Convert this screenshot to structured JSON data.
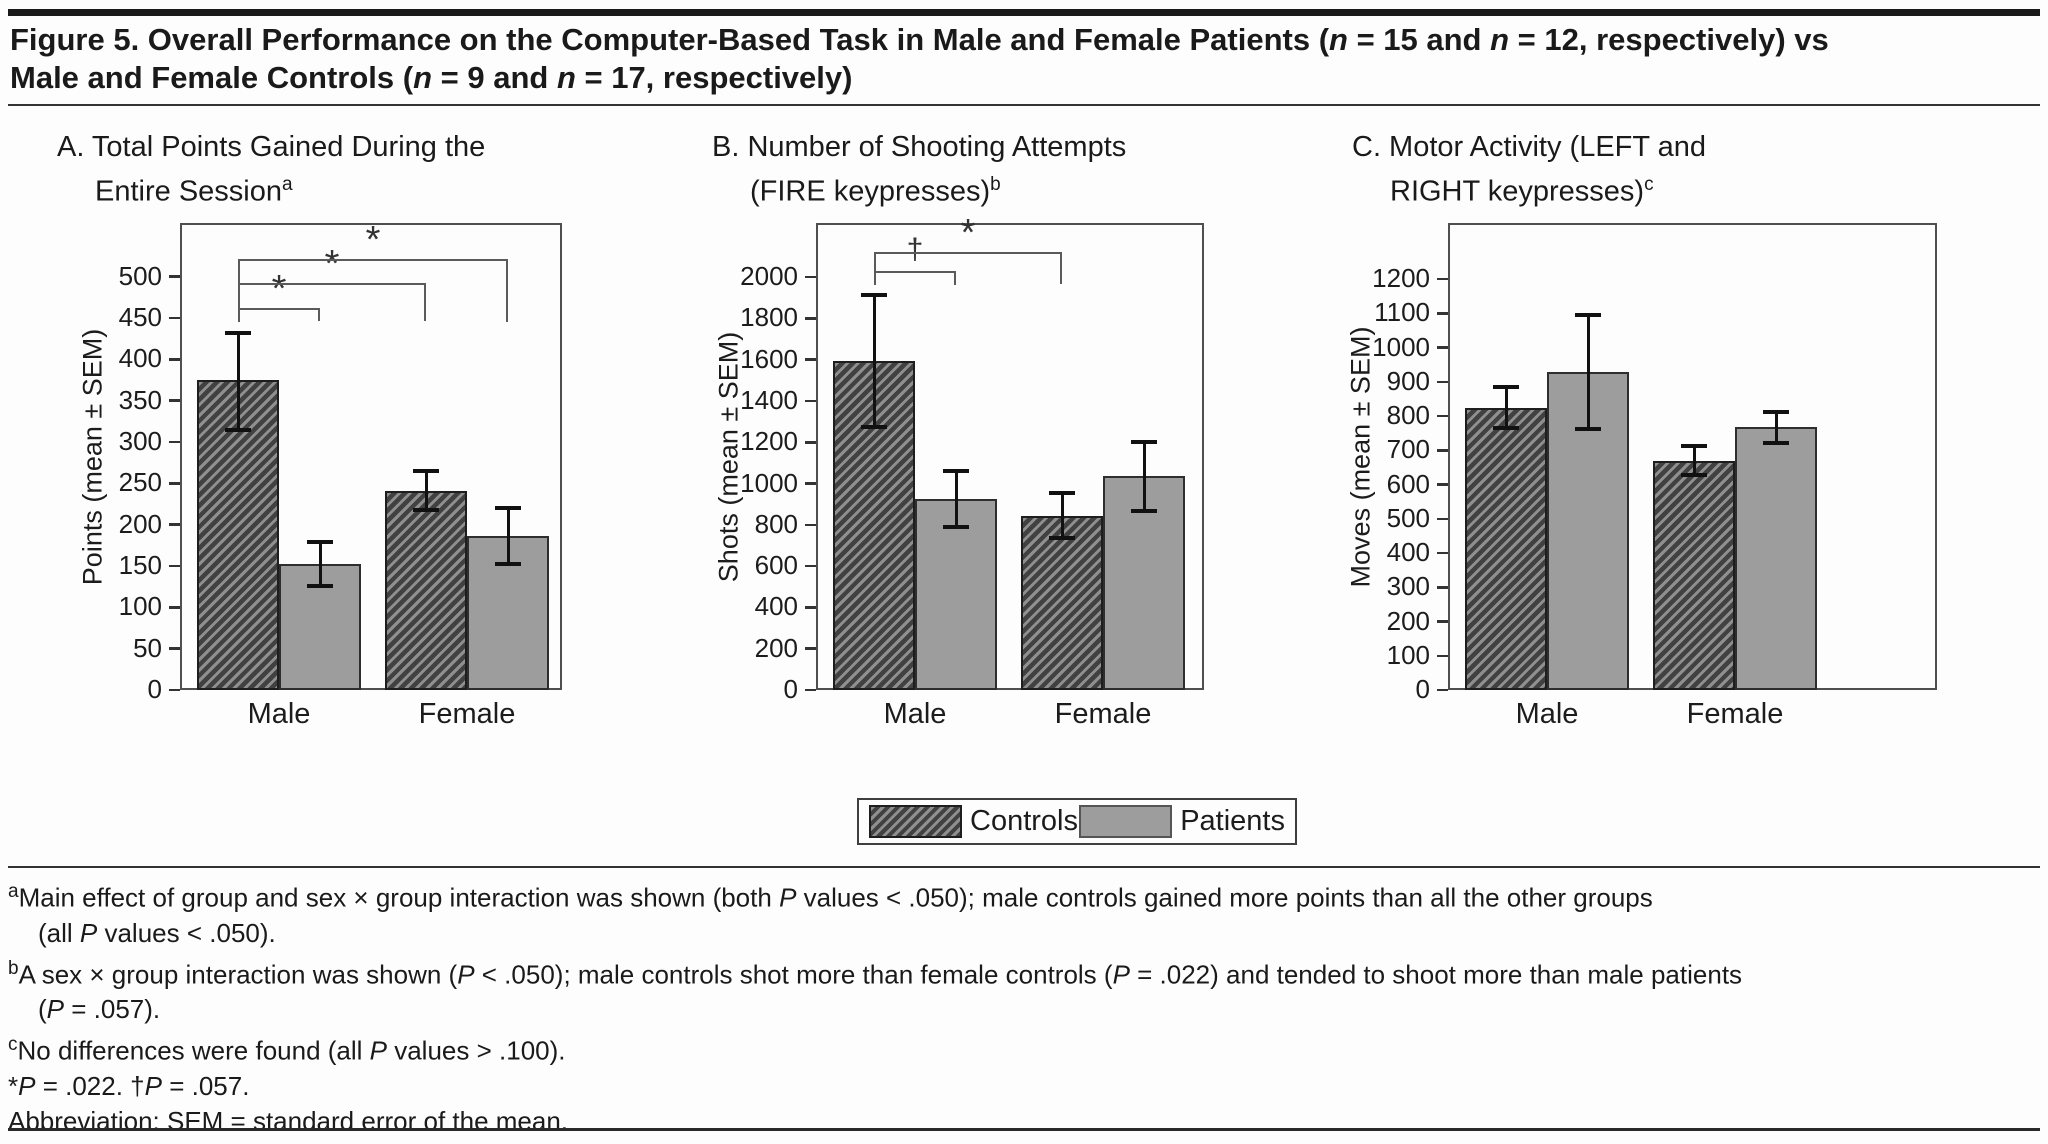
{
  "figure": {
    "title_line1": "Figure 5. Overall Performance on the Computer-Based Task in Male and Female Patients (n = 15 and n = 12, respectively) vs",
    "title_line2": "Male and Female Controls (n = 9 and n = 17, respectively)"
  },
  "legend": {
    "controls_label": "Controls",
    "patients_label": "Patients"
  },
  "colors": {
    "hatch_light": "#8f8f8f",
    "hatch_dark": "#414141",
    "patient_fill": "#9d9d9d",
    "bar_border": "#1e1e1e",
    "frame": "#4f4f4f",
    "text": "#1a1a1a"
  },
  "chart_data": [
    {
      "panel": "A",
      "type": "bar",
      "title_lines": [
        "A. Total Points Gained During the",
        "Entire Session"
      ],
      "title_superscript": "a",
      "ylabel": "Points (mean ± SEM)",
      "categories": [
        "Male",
        "Female"
      ],
      "series": [
        {
          "name": "Controls",
          "style": "hatched",
          "values": [
            375,
            241
          ],
          "err_low": [
            315,
            218
          ],
          "err_high": [
            432,
            265
          ]
        },
        {
          "name": "Patients",
          "style": "plain",
          "values": [
            152,
            186
          ],
          "err_low": [
            126,
            152
          ],
          "err_high": [
            179,
            220
          ]
        }
      ],
      "ylim": [
        0,
        565
      ],
      "yticks": [
        0,
        50,
        100,
        150,
        200,
        250,
        300,
        350,
        400,
        450,
        500
      ],
      "grid": false,
      "sig_brackets": [
        {
          "symbol": "*",
          "from_bar": 0,
          "to_bar": 1,
          "level": 462,
          "leg_bottom": 447
        },
        {
          "symbol": "*",
          "from_bar": 0,
          "to_bar": 2,
          "level": 492,
          "leg_bottom": 447
        },
        {
          "symbol": "*",
          "from_bar": 0,
          "to_bar": 3,
          "level": 521,
          "leg_bottom": 445
        }
      ]
    },
    {
      "panel": "B",
      "type": "bar",
      "title_lines": [
        "B. Number of Shooting Attempts",
        "(FIRE keypresses)"
      ],
      "title_superscript": "b",
      "ylabel": "Shots (mean ± SEM)",
      "categories": [
        "Male",
        "Female"
      ],
      "series": [
        {
          "name": "Controls",
          "style": "hatched",
          "values": [
            1595,
            845
          ],
          "err_low": [
            1275,
            735
          ],
          "err_high": [
            1915,
            955
          ]
        },
        {
          "name": "Patients",
          "style": "plain",
          "values": [
            925,
            1035
          ],
          "err_low": [
            790,
            865
          ],
          "err_high": [
            1060,
            1200
          ]
        }
      ],
      "ylim": [
        0,
        2262
      ],
      "yticks": [
        0,
        200,
        400,
        600,
        800,
        1000,
        1200,
        1400,
        1600,
        1800,
        2000
      ],
      "grid": false,
      "sig_brackets": [
        {
          "symbol": "†",
          "from_bar": 0,
          "to_bar": 1,
          "level": 2030,
          "leg_bottom": 1960
        },
        {
          "symbol": "*",
          "from_bar": 0,
          "to_bar": 2,
          "level": 2120,
          "leg_bottom": 1965
        }
      ]
    },
    {
      "panel": "C",
      "type": "bar",
      "title_lines": [
        "C. Motor Activity (LEFT and",
        "RIGHT keypresses)"
      ],
      "title_superscript": "c",
      "ylabel": "Moves (mean ± SEM)",
      "categories": [
        "Male",
        "Female"
      ],
      "series": [
        {
          "name": "Controls",
          "style": "hatched",
          "values": [
            825,
            670
          ],
          "err_low": [
            765,
            627
          ],
          "err_high": [
            885,
            713
          ]
        },
        {
          "name": "Patients",
          "style": "plain",
          "values": [
            928,
            767
          ],
          "err_low": [
            763,
            722
          ],
          "err_high": [
            1095,
            813
          ]
        }
      ],
      "ylim": [
        0,
        1364
      ],
      "yticks": [
        0,
        100,
        200,
        300,
        400,
        500,
        600,
        700,
        800,
        900,
        1000,
        1100,
        1200
      ],
      "grid": false,
      "sig_brackets": []
    }
  ],
  "footnotes": [
    {
      "sup": "a",
      "indent": false,
      "text": "Main effect of group and sex × group interaction was shown (both P values < .050); male controls gained more points than all the other groups"
    },
    {
      "sup": "",
      "indent": true,
      "text": "(all P values < .050)."
    },
    {
      "sup": "b",
      "indent": false,
      "text": "A sex × group interaction was shown (P < .050); male controls shot more than female controls (P = .022) and tended to shoot more than male patients"
    },
    {
      "sup": "",
      "indent": true,
      "text": "(P = .057)."
    },
    {
      "sup": "c",
      "indent": false,
      "text": "No differences were found (all P values > .100)."
    },
    {
      "sup": "",
      "indent": false,
      "text": "*P = .022.   †P = .057."
    },
    {
      "sup": "",
      "indent": false,
      "text": "Abbreviation: SEM = standard error of the mean."
    }
  ]
}
